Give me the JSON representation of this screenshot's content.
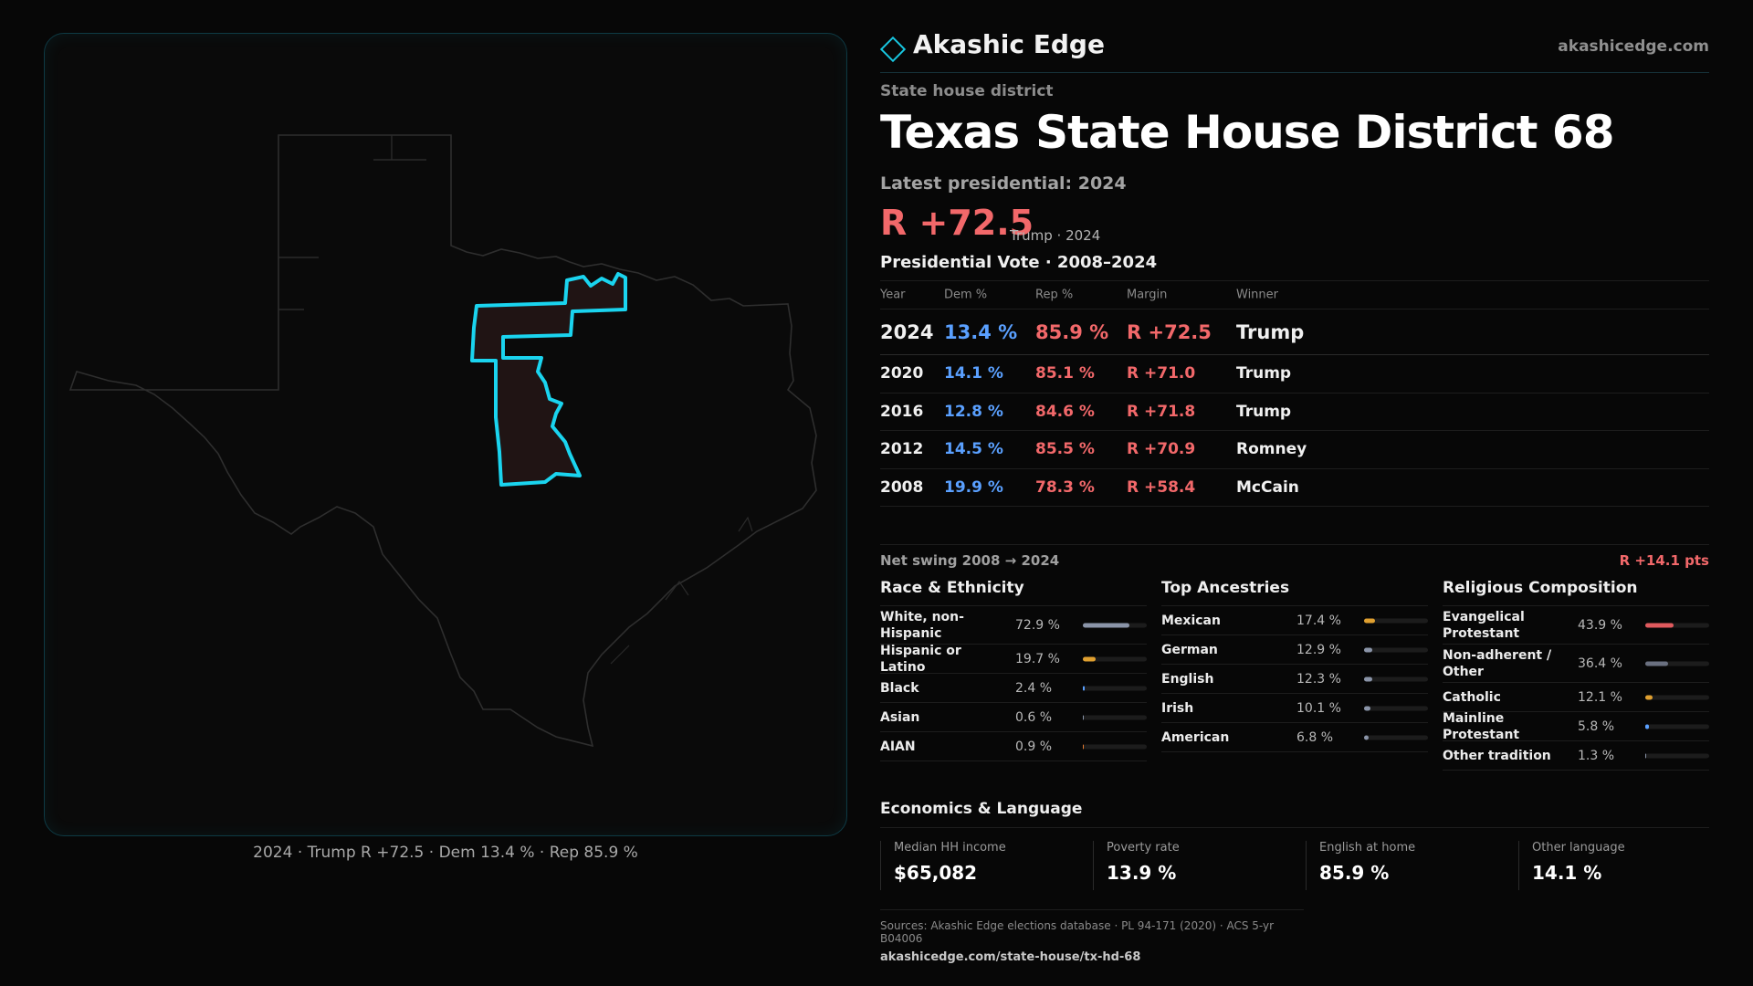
{
  "brand": {
    "name": "Akashic Edge",
    "url": "akashicedge.com",
    "accent": "#18c6e0"
  },
  "header": {
    "kicker": "State house district",
    "title_state": "Texas",
    "title_district": "State House District 68",
    "latest": "Latest presidential: 2024",
    "margin": "R +72.5",
    "margin_sub": "Trump · 2024"
  },
  "votes": {
    "title": "Presidential Vote · 2008–2024",
    "headers": {
      "year": "Year",
      "dem": "Dem %",
      "rep": "Rep %",
      "margin": "Margin",
      "winner": "Winner"
    },
    "rows": [
      {
        "year": "2024",
        "dem": "13.4 %",
        "rep": "85.9 %",
        "margin": "R +72.5",
        "winner": "Trump"
      },
      {
        "year": "2020",
        "dem": "14.1 %",
        "rep": "85.1 %",
        "margin": "R +71.0",
        "winner": "Trump"
      },
      {
        "year": "2016",
        "dem": "12.8 %",
        "rep": "84.6 %",
        "margin": "R +71.8",
        "winner": "Trump"
      },
      {
        "year": "2012",
        "dem": "14.5 %",
        "rep": "85.5 %",
        "margin": "R +70.9",
        "winner": "Romney"
      },
      {
        "year": "2008",
        "dem": "19.9 %",
        "rep": "78.3 %",
        "margin": "R +58.4",
        "winner": "McCain"
      }
    ],
    "swing_label": "Net swing 2008 → 2024",
    "swing_value": "R +14.1 pts"
  },
  "race": {
    "title": "Race & Ethnicity",
    "items": [
      {
        "label": "White, non-Hispanic",
        "pct": "72.9 %",
        "value": 72.9,
        "color": "#8a94a8"
      },
      {
        "label": "Hispanic or Latino",
        "pct": "19.7 %",
        "value": 19.7,
        "color": "#e0a030"
      },
      {
        "label": "Black",
        "pct": "2.4 %",
        "value": 2.4,
        "color": "#5aa0ff"
      },
      {
        "label": "Asian",
        "pct": "0.6 %",
        "value": 0.6,
        "color": "#8a94a8"
      },
      {
        "label": "AIAN",
        "pct": "0.9 %",
        "value": 0.9,
        "color": "#e07a30"
      }
    ]
  },
  "ancestry": {
    "title": "Top Ancestries",
    "items": [
      {
        "label": "Mexican",
        "pct": "17.4 %",
        "value": 17.4,
        "color": "#e0a030"
      },
      {
        "label": "German",
        "pct": "12.9 %",
        "value": 12.9,
        "color": "#8a94a8"
      },
      {
        "label": "English",
        "pct": "12.3 %",
        "value": 12.3,
        "color": "#8a94a8"
      },
      {
        "label": "Irish",
        "pct": "10.1 %",
        "value": 10.1,
        "color": "#8a94a8"
      },
      {
        "label": "American",
        "pct": "6.8 %",
        "value": 6.8,
        "color": "#8a94a8"
      }
    ]
  },
  "religion": {
    "title": "Religious Composition",
    "items": [
      {
        "label": "Evangelical Protestant",
        "pct": "43.9 %",
        "value": 43.9,
        "color": "#e05a5e"
      },
      {
        "label": "Non-adherent / Other",
        "pct": "36.4 %",
        "value": 36.4,
        "color": "#6a7080"
      },
      {
        "label": "Catholic",
        "pct": "12.1 %",
        "value": 12.1,
        "color": "#e0a030"
      },
      {
        "label": "Mainline Protestant",
        "pct": "5.8 %",
        "value": 5.8,
        "color": "#5aa0ff"
      },
      {
        "label": "Other tradition",
        "pct": "1.3 %",
        "value": 1.3,
        "color": "#8a94a8"
      }
    ]
  },
  "economics": {
    "title": "Economics & Language",
    "cards": [
      {
        "label": "Median HH income",
        "value": "$65,082"
      },
      {
        "label": "Poverty rate",
        "value": "13.9 %"
      },
      {
        "label": "English at home",
        "value": "85.9 %"
      },
      {
        "label": "Other language",
        "value": "14.1 %"
      }
    ]
  },
  "map": {
    "caption": "2024 · Trump R +72.5 · Dem 13.4 % · Rep 85.9 %"
  },
  "sources": {
    "line1": "Sources: Akashic Edge elections database · PL 94-171 (2020) · ACS 5-yr B04006",
    "line2": "akashicedge.com/state-house/tx-hd-68"
  }
}
